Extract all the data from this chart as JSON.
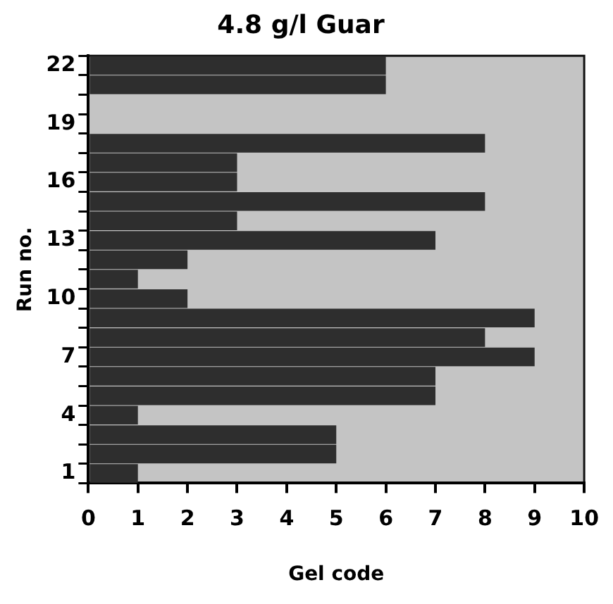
{
  "chart_data": {
    "type": "bar",
    "orientation": "horizontal",
    "title": "4.8 g/l Guar",
    "xlabel": "Gel code",
    "ylabel": "Run no.",
    "categories": [
      "22",
      null,
      null,
      "19",
      null,
      null,
      "16",
      null,
      null,
      "13",
      null,
      null,
      "10",
      null,
      null,
      "7",
      null,
      null,
      "4",
      null,
      null,
      "1"
    ],
    "values": [
      6,
      6,
      null,
      null,
      8,
      3,
      3,
      8,
      3,
      7,
      2,
      1,
      2,
      9,
      8,
      9,
      7,
      7,
      1,
      5,
      5,
      1
    ],
    "color": "#2e2e2e",
    "xlim": [
      0,
      10
    ],
    "xticks": [
      0,
      1,
      2,
      3,
      4,
      5,
      6,
      7,
      8,
      9,
      10
    ],
    "grid": false,
    "legend": false
  }
}
